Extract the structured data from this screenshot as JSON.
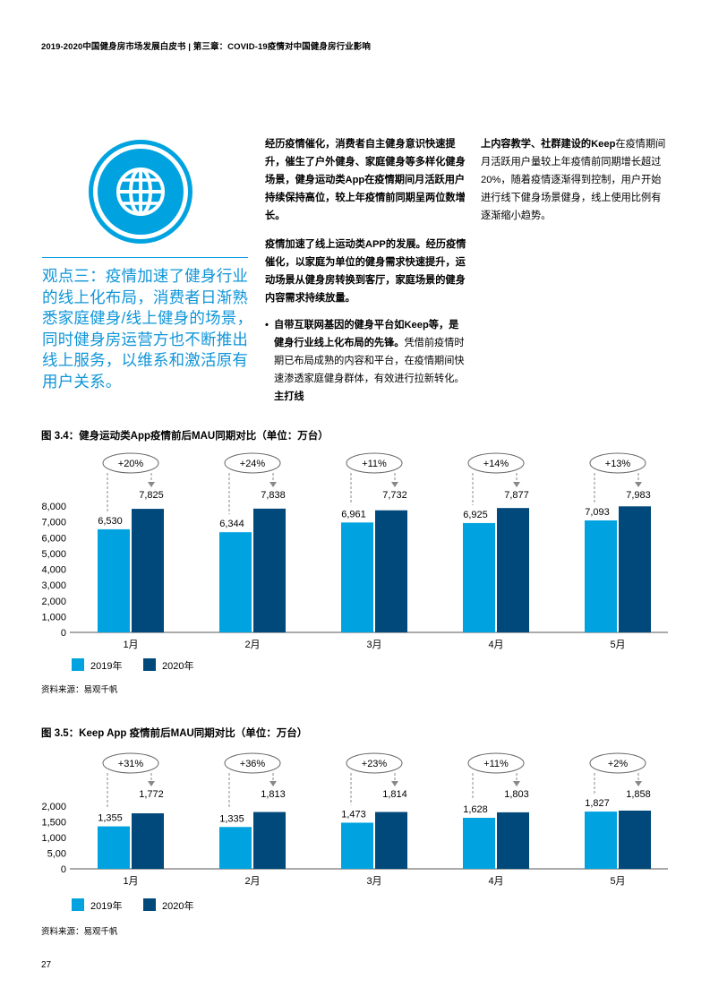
{
  "header": {
    "text": "2019-2020中国健身房市场发展白皮书 | 第三章：COVID-19疫情对中国健身房行业影响"
  },
  "icons": {
    "globe": "globe-icon"
  },
  "callout": {
    "text": "观点三：疫情加速了健身行业的线上化布局，消费者日渐熟悉家庭健身/线上健身的场景，同时健身房运营方也不断推出线上服务，以维系和激活原有用户关系。"
  },
  "body": {
    "p1": "经历疫情催化，消费者自主健身意识快速提升，催生了户外健身、家庭健身等多样化健身场景，健身运动类App在疫情期间月活跃用户持续保持高位，较上年疫情前同期呈两位数增长。",
    "p2": "疫情加速了线上运动类APP的发展。经历疫情催化，以家庭为单位的健身需求快速提升，运动场景从健身房转换到客厅，家庭场景的健身内容需求持续放量。",
    "bullet_bold": "自带互联网基因的健身平台如Keep等，是健身行业线上化布局的先锋。",
    "bullet_text": "凭借前疫情时期已布局成熟的内容和平台，在疫情期间快速渗透家庭健身群体，有效进行拉新转化。",
    "bullet_bold2": "主打线",
    "col2_bold": "上内容教学、社群建设的Keep",
    "col2_text": "在疫情期间月活跃用户量较上年疫情前同期增长超过20%，随着疫情逐渐得到控制，用户开始进行线下健身场景健身，线上使用比例有逐渐缩小趋势。"
  },
  "figures": {
    "fig34": {
      "title": "图 3.4：健身运动类App疫情前后MAU同期对比（单位：万台）",
      "source": "资料来源：易观千帆"
    },
    "fig35": {
      "title": "图 3.5：Keep App 疫情前后MAU同期对比（单位：万台）",
      "source": "资料来源：易观千帆"
    }
  },
  "colors": {
    "accent": "#0f95d8",
    "series_2019": "#00a3e0",
    "series_2020": "#00497a"
  },
  "chart_data": [
    {
      "type": "bar",
      "categories": [
        "1月",
        "2月",
        "3月",
        "4月",
        "5月"
      ],
      "series": [
        {
          "name": "2019年",
          "values": [
            6530,
            6344,
            6961,
            6925,
            7093
          ]
        },
        {
          "name": "2020年",
          "values": [
            7825,
            7838,
            7732,
            7877,
            7983
          ]
        }
      ],
      "growth_labels": [
        "+20%",
        "+24%",
        "+11%",
        "+14%",
        "+13%"
      ],
      "value_labels_2019": [
        "6,530",
        "6,344",
        "6,961",
        "6,925",
        "7,093"
      ],
      "value_labels_2020": [
        "7,825",
        "7,838",
        "7,732",
        "7,877",
        "7,983"
      ],
      "yticks": [
        "0",
        "1,000",
        "2,000",
        "3,000",
        "4,000",
        "5,000",
        "6,000",
        "7,000",
        "8,000"
      ],
      "ylim": [
        0,
        8000
      ],
      "legend_position": "bottom-left"
    },
    {
      "type": "bar",
      "categories": [
        "1月",
        "2月",
        "3月",
        "4月",
        "5月"
      ],
      "series": [
        {
          "name": "2019年",
          "values": [
            1355,
            1335,
            1473,
            1628,
            1827
          ]
        },
        {
          "name": "2020年",
          "values": [
            1772,
            1813,
            1814,
            1803,
            1858
          ]
        }
      ],
      "growth_labels": [
        "+31%",
        "+36%",
        "+23%",
        "+11%",
        "+2%"
      ],
      "value_labels_2019": [
        "1,355",
        "1,335",
        "1,473",
        "1,628",
        "1,827"
      ],
      "value_labels_2020": [
        "1,772",
        "1,813",
        "1,814",
        "1,803",
        "1,858"
      ],
      "yticks": [
        "0",
        "5,00",
        "1,000",
        "1,500",
        "2,000"
      ],
      "ylim": [
        0,
        2000
      ],
      "legend_position": "bottom-left"
    }
  ],
  "page": {
    "number": "27"
  }
}
